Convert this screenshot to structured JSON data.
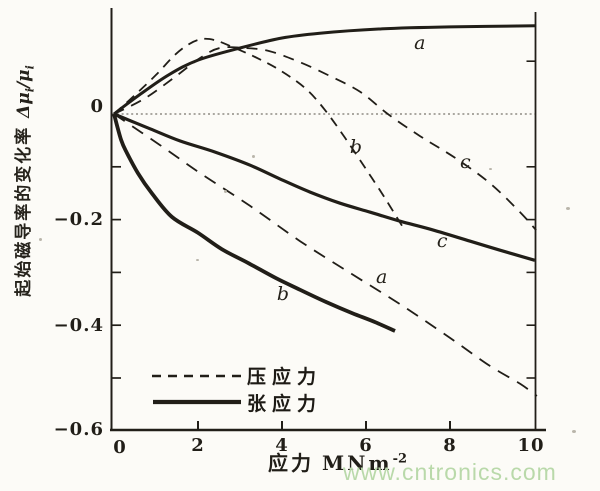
{
  "watermark": "www.cntronics.com",
  "chart_data": {
    "type": "line",
    "title": "",
    "xlabel": "应力 MNm⁻²",
    "xlabel_cn": "应力",
    "xlabel_unit": "MNm",
    "xlabel_sup": "-2",
    "ylabel": "起始磁导率的变化率 Δμi/μi",
    "ylabel_cn": "起始磁导率的变化率",
    "ylabel_sym_delta": "Δμ",
    "ylabel_sub1": "i",
    "ylabel_slash": "/μ",
    "ylabel_sub2": "i",
    "xlim": [
      0,
      10
    ],
    "ylim": [
      -0.6,
      0.2
    ],
    "grid": false,
    "zero_line": true,
    "legend_position": "lower-left-inside",
    "xticks": {
      "values": [
        0,
        2,
        4,
        6,
        8,
        10
      ],
      "labels": [
        "0",
        "2",
        "4",
        "6",
        "8",
        "10"
      ]
    },
    "yticks": {
      "values": [
        0,
        -0.2,
        -0.4,
        -0.6
      ],
      "labels": [
        "0",
        "−0.2",
        "−0.4",
        "−0.6"
      ]
    },
    "minor_tick_step": 0.1,
    "legend": [
      {
        "label": "压应力",
        "line": "dashed"
      },
      {
        "label": "张应力",
        "line": "solid"
      }
    ],
    "series": [
      {
        "name": "tensile-a",
        "line": "solid",
        "label": "a",
        "x": [
          0,
          0.6,
          1.3,
          2.0,
          3.0,
          4.0,
          4.9,
          6.3,
          8.0,
          10.05
        ],
        "y": [
          0,
          0.036,
          0.074,
          0.102,
          0.125,
          0.144,
          0.153,
          0.161,
          0.165,
          0.167
        ]
      },
      {
        "name": "compressive-b",
        "line": "dashed",
        "label": "b",
        "x": [
          0,
          0.5,
          1.0,
          1.45,
          1.8,
          2.1,
          2.4,
          2.76,
          3.36,
          3.95,
          4.55,
          5.02,
          5.5,
          5.98,
          6.45,
          6.86
        ],
        "y": [
          0,
          0.036,
          0.074,
          0.112,
          0.133,
          0.142,
          0.14,
          0.129,
          0.108,
          0.083,
          0.049,
          0.008,
          -0.045,
          -0.102,
          -0.159,
          -0.212
        ]
      },
      {
        "name": "compressive-c",
        "line": "dashed",
        "label": "c",
        "x": [
          0,
          0.74,
          1.45,
          2.05,
          2.52,
          3.12,
          3.71,
          4.43,
          5.14,
          5.86,
          6.52,
          7.29,
          8.12,
          8.95,
          9.67,
          10.05
        ],
        "y": [
          0,
          0.03,
          0.07,
          0.106,
          0.125,
          0.125,
          0.119,
          0.098,
          0.072,
          0.042,
          0,
          -0.042,
          -0.083,
          -0.131,
          -0.186,
          -0.22
        ]
      },
      {
        "name": "tensile-c",
        "line": "solid",
        "label": "c",
        "x": [
          0,
          0.86,
          1.57,
          2.4,
          3.24,
          3.95,
          4.67,
          5.38,
          6.1,
          6.81,
          7.52,
          8.48,
          9.19,
          10.02
        ],
        "y": [
          0,
          -0.028,
          -0.051,
          -0.072,
          -0.097,
          -0.123,
          -0.148,
          -0.169,
          -0.186,
          -0.203,
          -0.218,
          -0.241,
          -0.258,
          -0.277
        ]
      },
      {
        "name": "compressive-a",
        "line": "dashed",
        "label": "a",
        "x": [
          0,
          1.1,
          2.05,
          3.24,
          4.43,
          5.62,
          6.81,
          8.0,
          8.95,
          9.67,
          10.07
        ],
        "y": [
          0,
          -0.059,
          -0.112,
          -0.174,
          -0.241,
          -0.301,
          -0.36,
          -0.424,
          -0.477,
          -0.511,
          -0.534
        ]
      },
      {
        "name": "tensile-b",
        "line": "solid",
        "label": "b",
        "x": [
          0,
          0.17,
          0.31,
          0.57,
          0.9,
          1.38,
          2.0,
          2.57,
          3.19,
          3.86,
          4.43,
          5.05,
          5.67,
          6.21,
          6.69
        ],
        "y": [
          0,
          -0.049,
          -0.074,
          -0.112,
          -0.15,
          -0.195,
          -0.225,
          -0.256,
          -0.282,
          -0.311,
          -0.333,
          -0.356,
          -0.377,
          -0.394,
          -0.411
        ]
      }
    ],
    "curve_labels": [
      {
        "text": "a",
        "x": 7.29,
        "y": 0.133
      },
      {
        "text": "b",
        "x": 5.76,
        "y": -0.064
      },
      {
        "text": "c",
        "x": 8.38,
        "y": -0.093
      },
      {
        "text": "c",
        "x": 7.83,
        "y": -0.242
      },
      {
        "text": "a",
        "x": 6.38,
        "y": -0.311
      },
      {
        "text": "b",
        "x": 4.02,
        "y": -0.343
      }
    ],
    "ink_color": "#211e18",
    "watermark_color": "#b9d9aa"
  }
}
